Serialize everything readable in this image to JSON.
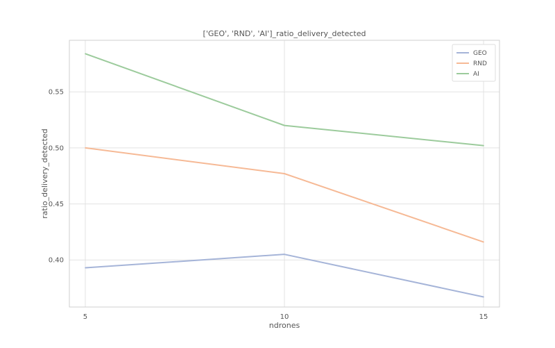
{
  "chart_data": {
    "type": "line",
    "title": "['GEO', 'RND', 'AI']_ratio_delivery_detected",
    "xlabel": "ndrones",
    "ylabel": "ratio_delivery_detected",
    "x": [
      5,
      10,
      15
    ],
    "x_ticks": [
      5,
      10,
      15
    ],
    "xlim": [
      4.6,
      15.4
    ],
    "y_ticks": [
      0.4,
      0.45,
      0.5,
      0.55
    ],
    "ylim": [
      0.358,
      0.596
    ],
    "grid": true,
    "legend_position": "top-right",
    "series": [
      {
        "name": "GEO",
        "values": [
          0.393,
          0.405,
          0.367
        ],
        "color": "#a5b4d8"
      },
      {
        "name": "RND",
        "values": [
          0.5,
          0.477,
          0.416
        ],
        "color": "#f6b995"
      },
      {
        "name": "AI",
        "values": [
          0.584,
          0.52,
          0.502
        ],
        "color": "#9ccb9c"
      }
    ]
  }
}
